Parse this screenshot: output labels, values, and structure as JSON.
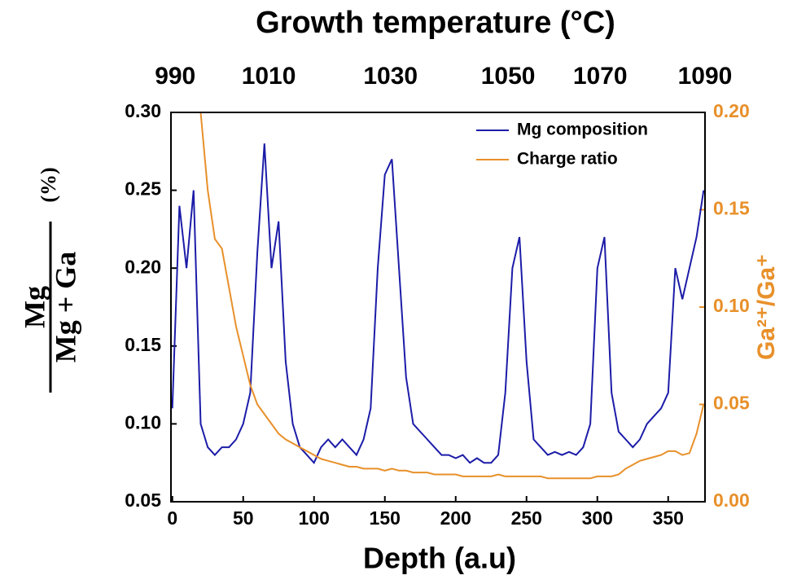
{
  "chart_data": {
    "type": "line",
    "title": "Growth temperature (°C)",
    "xlabel": "Depth (a.u)",
    "ylabel_numerator": "Mg",
    "ylabel_denominator": "Mg + Ga",
    "ylabel_unit": "(%)",
    "y2label": "Ga²⁺/Ga⁺",
    "xlim": [
      -1,
      376
    ],
    "xticks": [
      0,
      50,
      100,
      150,
      200,
      250,
      300,
      350
    ],
    "ylim": [
      0.05,
      0.3
    ],
    "yticks": [
      0.05,
      {
        "value": 0.1,
        "label": "0.10"
      },
      0.15,
      {
        "value": 0.2,
        "label": "0.20"
      },
      0.25,
      {
        "value": 0.3,
        "label": "0.30"
      }
    ],
    "y2lim": [
      0,
      0.2
    ],
    "y2ticks": [
      {
        "value": 0,
        "label": "0.00"
      },
      0.05,
      {
        "value": 0.1,
        "label": "0.10"
      },
      0.15,
      {
        "value": 0.2,
        "label": "0.20"
      }
    ],
    "top_ticks": [
      {
        "value": 2,
        "label": "990"
      },
      {
        "value": 68,
        "label": "1010"
      },
      {
        "value": 154,
        "label": "1030"
      },
      {
        "value": 237,
        "label": "1050"
      },
      {
        "value": 302,
        "label": "1070"
      },
      {
        "value": 376,
        "label": "1090"
      }
    ],
    "legend": "upper right",
    "x": [
      0,
      5,
      10,
      15,
      20,
      25,
      30,
      35,
      40,
      45,
      50,
      55,
      60,
      65,
      70,
      75,
      80,
      85,
      90,
      95,
      100,
      105,
      110,
      115,
      120,
      125,
      130,
      135,
      140,
      145,
      150,
      155,
      160,
      165,
      170,
      175,
      180,
      185,
      190,
      195,
      200,
      205,
      210,
      215,
      220,
      225,
      230,
      235,
      240,
      245,
      250,
      255,
      260,
      265,
      270,
      275,
      280,
      285,
      290,
      295,
      300,
      305,
      310,
      315,
      320,
      325,
      330,
      335,
      340,
      345,
      350,
      355,
      360,
      365,
      370,
      375
    ],
    "series": [
      {
        "name": "Mg composition",
        "color": "#1c1ca8",
        "values": [
          0.11,
          0.24,
          0.2,
          0.25,
          0.1,
          0.085,
          0.08,
          0.085,
          0.085,
          0.09,
          0.1,
          0.12,
          0.21,
          0.28,
          0.2,
          0.23,
          0.14,
          0.1,
          0.085,
          0.08,
          0.075,
          0.085,
          0.09,
          0.085,
          0.09,
          0.085,
          0.08,
          0.09,
          0.11,
          0.2,
          0.26,
          0.27,
          0.2,
          0.13,
          0.1,
          0.095,
          0.09,
          0.085,
          0.08,
          0.08,
          0.078,
          0.08,
          0.075,
          0.078,
          0.075,
          0.075,
          0.08,
          0.12,
          0.2,
          0.22,
          0.14,
          0.09,
          0.085,
          0.08,
          0.082,
          0.08,
          0.082,
          0.08,
          0.085,
          0.1,
          0.2,
          0.22,
          0.12,
          0.095,
          0.09,
          0.085,
          0.09,
          0.1,
          0.105,
          0.11,
          0.12,
          0.2,
          0.18,
          0.2,
          0.22,
          0.25
        ]
      },
      {
        "name": "Charge ratio",
        "color": "#e8902a",
        "axis": "y2",
        "values": [
          null,
          null,
          null,
          null,
          0.2,
          0.16,
          0.135,
          0.13,
          0.11,
          0.09,
          0.075,
          0.06,
          0.05,
          0.045,
          0.04,
          0.035,
          0.032,
          0.03,
          0.028,
          0.026,
          0.024,
          0.022,
          0.021,
          0.02,
          0.019,
          0.018,
          0.018,
          0.017,
          0.017,
          0.017,
          0.016,
          0.017,
          0.016,
          0.016,
          0.015,
          0.015,
          0.015,
          0.014,
          0.014,
          0.014,
          0.014,
          0.013,
          0.013,
          0.013,
          0.013,
          0.013,
          0.014,
          0.013,
          0.013,
          0.013,
          0.013,
          0.013,
          0.013,
          0.012,
          0.012,
          0.012,
          0.012,
          0.012,
          0.012,
          0.012,
          0.013,
          0.013,
          0.013,
          0.014,
          0.017,
          0.019,
          0.021,
          0.022,
          0.023,
          0.024,
          0.026,
          0.026,
          0.024,
          0.025,
          0.035,
          0.05
        ]
      }
    ]
  }
}
